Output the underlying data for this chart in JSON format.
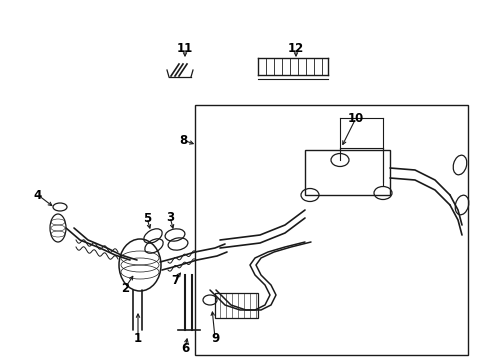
{
  "background_color": "#ffffff",
  "line_color": "#1a1a1a",
  "text_color": "#000000",
  "fig_width": 4.89,
  "fig_height": 3.6,
  "dpi": 100,
  "font_size": 8.5
}
